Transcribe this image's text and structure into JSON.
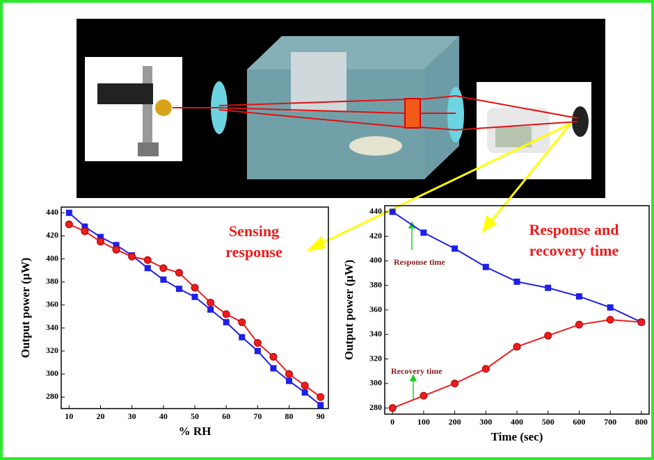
{
  "chart_data": [
    {
      "type": "line",
      "x_label": "% RH",
      "y_label": "Output power (µW)",
      "x": [
        10,
        15,
        20,
        25,
        30,
        35,
        40,
        45,
        50,
        55,
        60,
        65,
        70,
        75,
        80,
        85,
        90
      ],
      "series": [
        {
          "marker": "square",
          "color": "#1f1fe6",
          "values": [
            440,
            428,
            419,
            412,
            403,
            392,
            382,
            374,
            367,
            356,
            345,
            332,
            320,
            305,
            294,
            284,
            273
          ]
        },
        {
          "marker": "circle",
          "color": "#ee1c1c",
          "values": [
            430,
            424,
            415,
            408,
            402,
            399,
            392,
            388,
            375,
            362,
            352,
            345,
            327,
            315,
            300,
            290,
            280
          ]
        }
      ],
      "xlim": [
        7.5,
        92.5
      ],
      "xticks": [
        10,
        20,
        30,
        40,
        50,
        60,
        70,
        80,
        90
      ],
      "ylim": [
        270,
        445
      ],
      "yticks": [
        280,
        300,
        320,
        340,
        360,
        380,
        400,
        420,
        440
      ],
      "annotations": [
        "Sensing response"
      ]
    },
    {
      "type": "line",
      "x_label": "Time (sec)",
      "y_label": "Output power (µW)",
      "x": [
        0,
        100,
        200,
        300,
        400,
        500,
        600,
        700,
        800
      ],
      "series": [
        {
          "marker": "square",
          "color": "#1f1fe6",
          "values": [
            440,
            423,
            410,
            395,
            383,
            378,
            371,
            362,
            350
          ]
        },
        {
          "marker": "circle",
          "color": "#ee1c1c",
          "values": [
            280,
            290,
            300,
            312,
            330,
            339,
            348,
            352,
            350
          ]
        }
      ],
      "xlim": [
        -25,
        825
      ],
      "xticks": [
        0,
        100,
        200,
        300,
        400,
        500,
        600,
        700,
        800
      ],
      "ylim": [
        275,
        445
      ],
      "yticks": [
        280,
        300,
        320,
        340,
        360,
        380,
        400,
        420,
        440
      ],
      "annotations": [
        "Response and recovery time",
        "Response time",
        "Recovery time"
      ]
    }
  ]
}
